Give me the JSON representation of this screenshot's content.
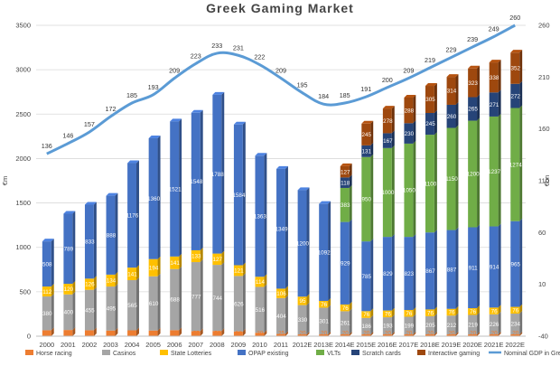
{
  "chart_data": {
    "type": "bar",
    "title": "Greek Gaming Market",
    "ylabel": "€m",
    "y2label": "€bn",
    "ylim": [
      0,
      3500
    ],
    "y2lim": [
      -40,
      260
    ],
    "yticks": [
      0,
      500,
      1000,
      1500,
      2000,
      2500,
      3000,
      3500
    ],
    "y2ticks": [
      -40,
      10,
      60,
      110,
      160,
      210,
      260
    ],
    "grid": true,
    "legend_position": "bottom",
    "categories": [
      "2000",
      "2001",
      "2002",
      "2003",
      "2004",
      "2005",
      "2006",
      "2007",
      "2008",
      "2009",
      "2010",
      "2011",
      "2012E",
      "2013E",
      "2014E",
      "2015E",
      "2016E",
      "2017E",
      "2018E",
      "2019E",
      "2020E",
      "2021E",
      "2022E"
    ],
    "series": [
      {
        "name": "Horse racing",
        "color": "#ED7D31",
        "values": [
          67,
          70,
          67,
          64,
          66,
          64,
          68,
          57,
          59,
          52,
          39,
          25,
          20,
          20,
          20,
          20,
          20,
          20,
          20,
          20,
          20,
          20,
          20
        ]
      },
      {
        "name": "Casinos",
        "color": "#A5A5A5",
        "values": [
          380,
          400,
          455,
          495,
          565,
          610,
          688,
          777,
          744,
          626,
          516,
          404,
          330,
          301,
          261,
          186,
          193,
          199,
          205,
          212,
          219,
          226,
          234
        ]
      },
      {
        "name": "State Lotteries",
        "color": "#FFC000",
        "values": [
          112,
          120,
          126,
          134,
          141,
          194,
          141,
          133,
          127,
          121,
          114,
          106,
          95,
          76,
          76,
          76,
          76,
          76,
          76,
          76,
          76,
          76,
          76
        ]
      },
      {
        "name": "OPAP existing",
        "color": "#4472C4",
        "values": [
          508,
          789,
          833,
          888,
          1176,
          1360,
          1521,
          1548,
          1788,
          1584,
          1363,
          1349,
          1200,
          1092,
          929,
          785,
          829,
          823,
          867,
          887,
          911,
          914,
          965
        ]
      },
      {
        "name": "VLTs",
        "color": "#70AD47",
        "values": [
          0,
          0,
          0,
          0,
          0,
          0,
          0,
          0,
          0,
          0,
          0,
          0,
          0,
          0,
          383,
          950,
          1000,
          1050,
          1100,
          1150,
          1200,
          1237,
          1274
        ]
      },
      {
        "name": "Scratch cards",
        "color": "#264478",
        "values": [
          0,
          0,
          0,
          0,
          0,
          0,
          0,
          0,
          0,
          0,
          0,
          0,
          0,
          0,
          118,
          131,
          167,
          230,
          245,
          260,
          265,
          271,
          272
        ]
      },
      {
        "name": "Interactive gaming",
        "color": "#9E480E",
        "values": [
          0,
          0,
          0,
          0,
          0,
          0,
          0,
          0,
          0,
          0,
          0,
          0,
          0,
          0,
          127,
          245,
          278,
          288,
          305,
          314,
          323,
          338,
          352
        ]
      }
    ],
    "bar_label_colors": [
      "#ED7D31",
      "#ffffff",
      "#ffffff",
      "#ffffff",
      "#ffffff",
      "#ffffff",
      "#ffffff"
    ],
    "segment_labels": {
      "Horse racing": [
        "67",
        "70",
        "67",
        "64",
        "66",
        "64",
        "68",
        "57",
        "59",
        "52",
        "39",
        "25",
        "20",
        "20",
        "20",
        "20",
        "20",
        "20",
        "20",
        "20",
        "20",
        "20",
        "20"
      ],
      "Casinos": [
        "380",
        "400",
        "455",
        "495",
        "565",
        "610",
        "688",
        "777",
        "744",
        "626",
        "516",
        "404",
        "330",
        "301",
        "261",
        "186",
        "193",
        "199",
        "205",
        "212",
        "219",
        "226",
        "234"
      ],
      "State Lotteries": [
        "112",
        "120",
        "126",
        "134",
        "141",
        "194",
        "141",
        "133",
        "127",
        "121",
        "114",
        "106",
        "95",
        "76",
        "76",
        "76",
        "76",
        "76",
        "76",
        "76",
        "76",
        "76",
        "76"
      ],
      "OPAP existing": [
        "508",
        "789",
        "833",
        "888",
        "1176",
        "1360",
        "1521",
        "1548",
        "1788",
        "1584",
        "1363",
        "1349",
        "1200",
        "1092",
        "929",
        "785",
        "829",
        "823",
        "867",
        "887",
        "911",
        "914",
        "965"
      ],
      "VLTs": [
        "0",
        "0",
        "0",
        "0",
        "0",
        "0",
        "0",
        "0",
        "0",
        "0",
        "0",
        "0",
        "0",
        "0",
        "383",
        "950",
        "1000",
        "1050",
        "1100",
        "1150",
        "1200",
        "1237",
        "1274"
      ],
      "Scratch cards": [
        "0",
        "0",
        "0",
        "0",
        "0",
        "0",
        "0",
        "0",
        "0",
        "0",
        "0",
        "0",
        "0",
        "0",
        "118",
        "131",
        "167",
        "230",
        "245",
        "260",
        "265",
        "271",
        "272"
      ],
      "Interactive gaming": [
        "0",
        "0",
        "0",
        "0",
        "0",
        "0",
        "0",
        "0",
        "0",
        "0",
        "0",
        "0",
        "0",
        "0",
        "127",
        "245",
        "278",
        "288",
        "305",
        "314",
        "323",
        "338",
        "352"
      ]
    },
    "line": {
      "name": "Nominal GDP in Greece (€bn)",
      "color": "#5B9BD5",
      "axis": "right",
      "values": [
        136,
        146,
        157,
        172,
        185,
        193,
        209,
        223,
        233,
        231,
        222,
        209,
        195,
        184,
        185,
        191,
        200,
        209,
        219,
        229,
        239,
        249,
        260
      ]
    }
  }
}
